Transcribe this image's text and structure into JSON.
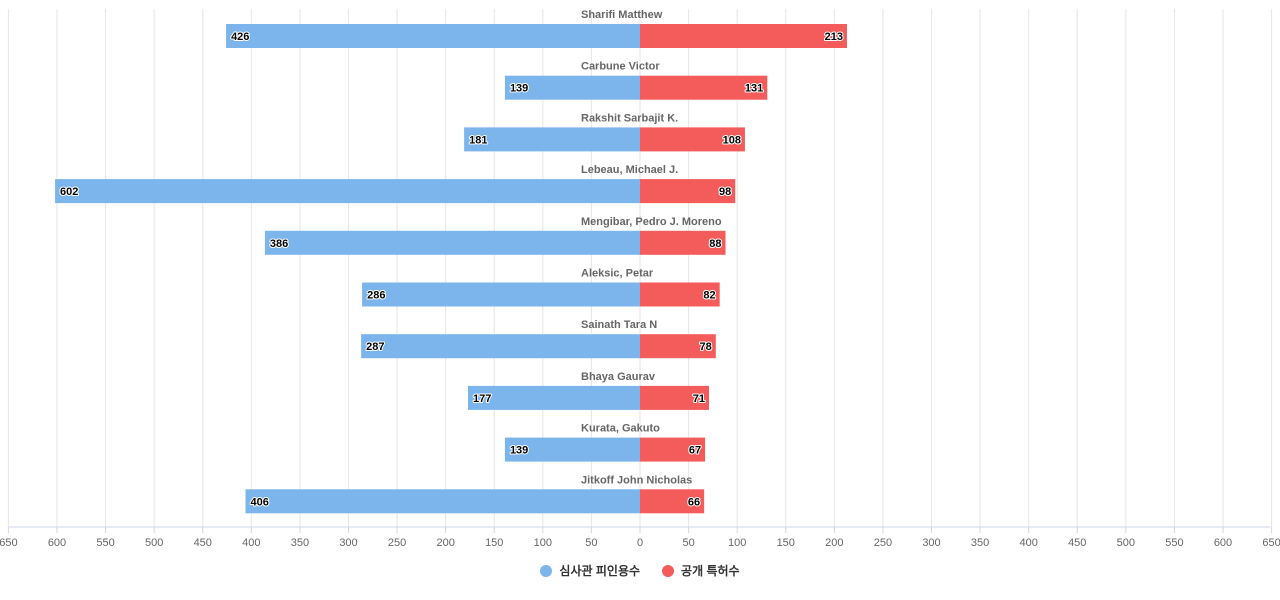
{
  "chart_data": {
    "type": "bar",
    "orientation": "horizontal-diverging",
    "title": "",
    "xlabel": "",
    "ylabel": "",
    "xlim": [
      -650,
      650
    ],
    "xtick_step": 50,
    "grid": true,
    "legend_position": "bottom",
    "categories": [
      "Sharifi Matthew",
      "Carbune Victor",
      "Rakshit Sarbajit K.",
      "Lebeau, Michael J.",
      "Mengibar, Pedro J. Moreno",
      "Aleksic, Petar",
      "Sainath Tara N",
      "Bhaya Gaurav",
      "Kurata, Gakuto",
      "Jitkoff John Nicholas"
    ],
    "series": [
      {
        "name": "심사관 피인용수",
        "color": "#7cb5ec",
        "direction": "left",
        "values": [
          426,
          139,
          181,
          602,
          386,
          286,
          287,
          177,
          139,
          406
        ]
      },
      {
        "name": "공개 특허수",
        "color": "#f45b5b",
        "direction": "right",
        "values": [
          213,
          131,
          108,
          98,
          88,
          82,
          78,
          71,
          67,
          66
        ]
      }
    ]
  },
  "colors": {
    "grid": "#e6e6e6",
    "axis": "#ccd6eb",
    "tick_label": "#666666",
    "category_label": "#666666"
  }
}
